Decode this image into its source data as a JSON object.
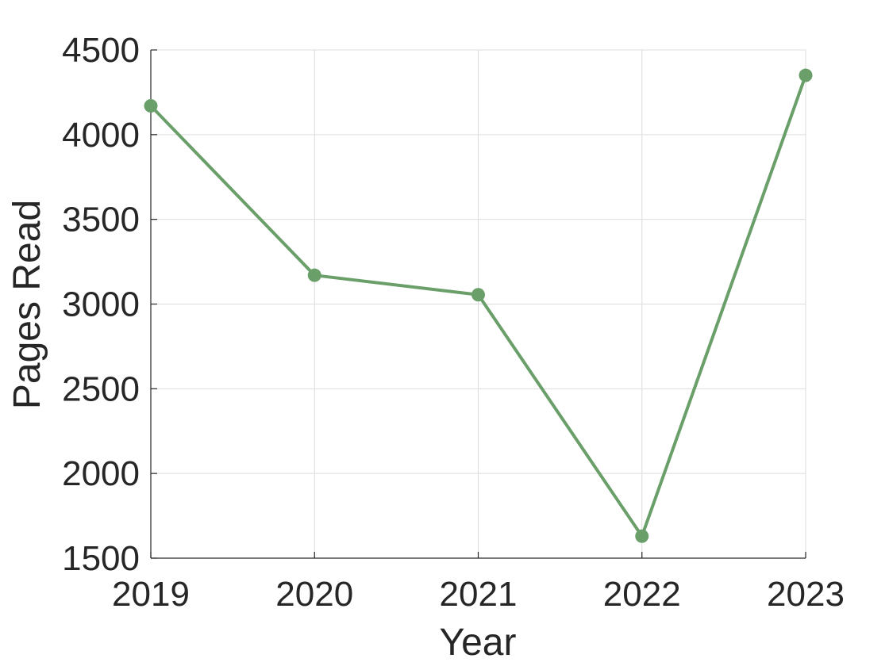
{
  "chart_data": {
    "type": "line",
    "xlabel": "Year",
    "ylabel": "Pages Read",
    "x": [
      "2019",
      "2020",
      "2021",
      "2022",
      "2023"
    ],
    "series": [
      {
        "values": [
          4170,
          3170,
          3055,
          1630,
          4350
        ]
      }
    ],
    "ylim": [
      1500,
      4500
    ],
    "yticks": [
      1500,
      2000,
      2500,
      3000,
      3500,
      4000,
      4500
    ],
    "grid": true,
    "colors": {
      "line": "#6a9f6a",
      "axis": "#262626",
      "grid": "#dcdcdc"
    }
  }
}
